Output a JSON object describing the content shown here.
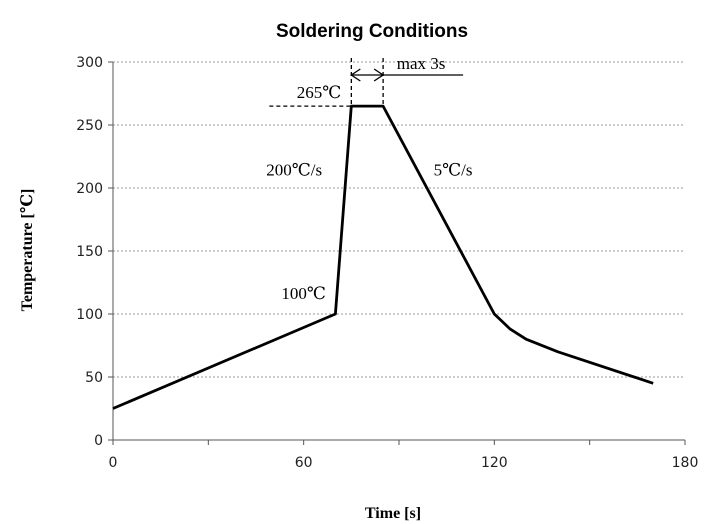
{
  "chart_data": {
    "type": "line",
    "title": "Soldering Conditions",
    "xlabel": "Time [s]",
    "ylabel": "Temperature [℃]",
    "xlim": [
      0,
      180
    ],
    "ylim": [
      0,
      300
    ],
    "x_ticks": [
      0,
      60,
      120,
      180
    ],
    "y_ticks": [
      0,
      50,
      100,
      150,
      200,
      250,
      300
    ],
    "grid": "horizontal",
    "series": [
      {
        "x": [
          0,
          70,
          75,
          85,
          120,
          125,
          130,
          140,
          170
        ],
        "y": [
          25,
          100,
          265,
          265,
          100,
          88,
          80,
          70,
          45
        ],
        "color": "#000000"
      }
    ],
    "annotations": [
      {
        "label": "265℃",
        "x": 75,
        "y": 265
      },
      {
        "label": "max 3s",
        "x_from": 75,
        "x_to": 85
      },
      {
        "label": "200℃/s",
        "x": 57,
        "y": 210
      },
      {
        "label": "5℃/s",
        "x": 107,
        "y": 210
      },
      {
        "label": "100℃",
        "x": 60,
        "y": 112
      }
    ]
  }
}
